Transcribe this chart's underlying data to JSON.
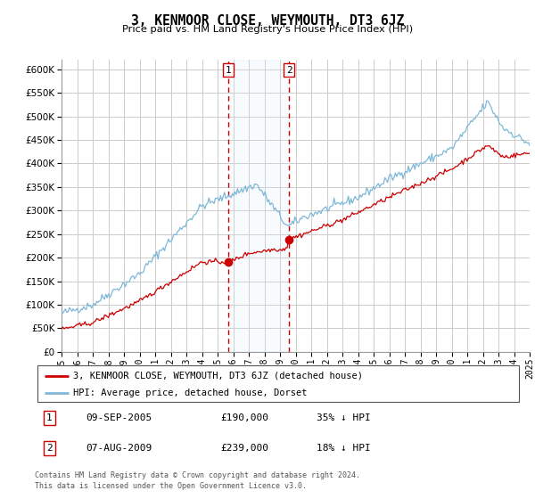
{
  "title": "3, KENMOOR CLOSE, WEYMOUTH, DT3 6JZ",
  "subtitle": "Price paid vs. HM Land Registry's House Price Index (HPI)",
  "ylim": [
    0,
    620000
  ],
  "yticks": [
    0,
    50000,
    100000,
    150000,
    200000,
    250000,
    300000,
    350000,
    400000,
    450000,
    500000,
    550000,
    600000
  ],
  "x_start_year": 1995,
  "x_end_year": 2025,
  "sale1_year": 2005.69,
  "sale1_price": 190000,
  "sale1_label": "1",
  "sale1_date": "09-SEP-2005",
  "sale1_hpi_diff": "35% ↓ HPI",
  "sale2_year": 2009.58,
  "sale2_price": 239000,
  "sale2_label": "2",
  "sale2_date": "07-AUG-2009",
  "sale2_hpi_diff": "18% ↓ HPI",
  "hpi_color": "#7db8d8",
  "price_color": "#cc0000",
  "legend_line1": "3, KENMOOR CLOSE, WEYMOUTH, DT3 6JZ (detached house)",
  "legend_line2": "HPI: Average price, detached house, Dorset",
  "footer1": "Contains HM Land Registry data © Crown copyright and database right 2024.",
  "footer2": "This data is licensed under the Open Government Licence v3.0.",
  "background_color": "#ffffff",
  "grid_color": "#cccccc",
  "sale_box_fill": "#ddeef8",
  "sale_box_border": "#cc0000"
}
